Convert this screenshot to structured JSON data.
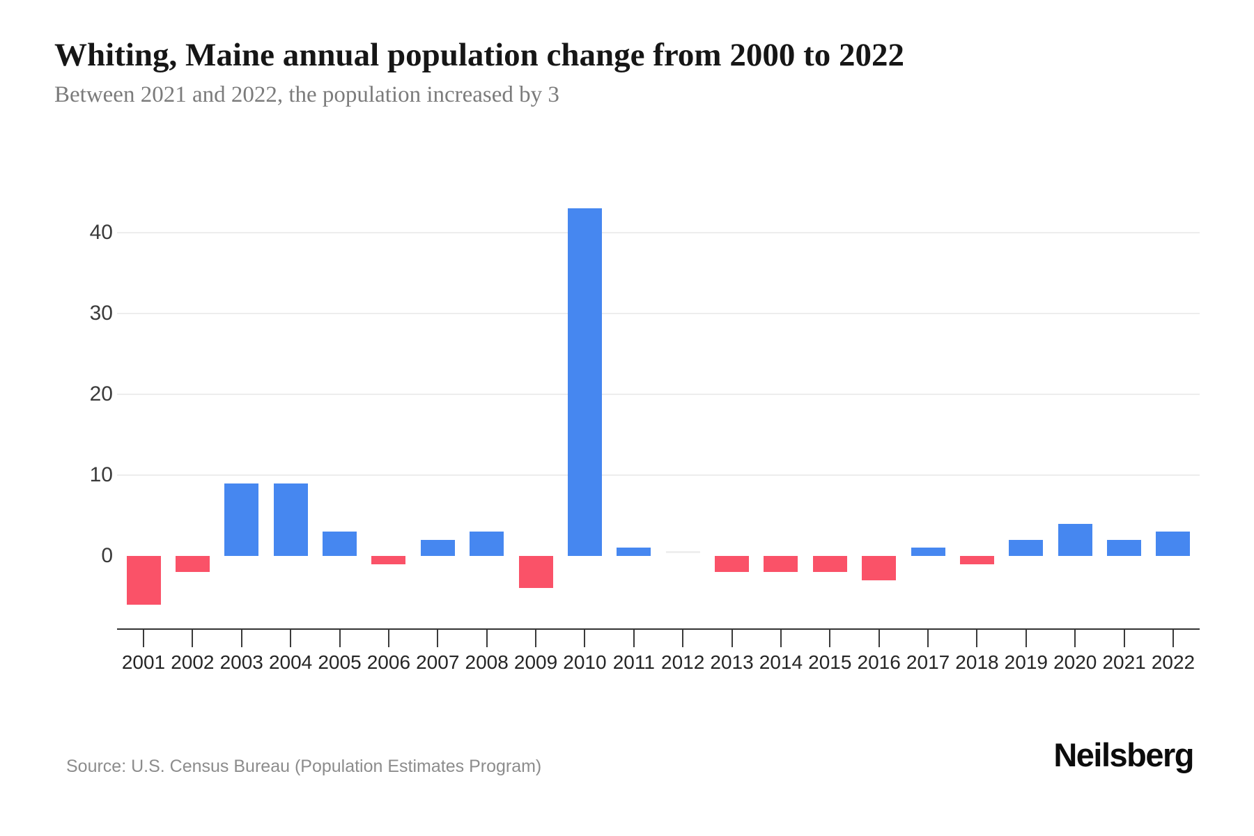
{
  "header": {
    "title": "Whiting, Maine annual population change from 2000 to 2022",
    "subtitle": "Between 2021 and 2022, the population increased by 3"
  },
  "footer": {
    "source": "Source: U.S. Census Bureau (Population Estimates Program)",
    "brand": "Neilsberg"
  },
  "chart_data": {
    "type": "bar",
    "title": "Whiting, Maine annual population change from 2000 to 2022",
    "subtitle": "Between 2021 and 2022, the population increased by 3",
    "categories": [
      "2001",
      "2002",
      "2003",
      "2004",
      "2005",
      "2006",
      "2007",
      "2008",
      "2009",
      "2010",
      "2011",
      "2012",
      "2013",
      "2014",
      "2015",
      "2016",
      "2017",
      "2018",
      "2019",
      "2020",
      "2021",
      "2022"
    ],
    "values": [
      -6,
      -2,
      9,
      9,
      3,
      -1,
      2,
      3,
      -4,
      43,
      1,
      0,
      -2,
      -2,
      -2,
      -3,
      1,
      -1,
      2,
      4,
      2,
      3
    ],
    "xlabel": "",
    "ylabel": "",
    "yticks": [
      0,
      10,
      20,
      30,
      40
    ],
    "ylim": [
      -9,
      45
    ],
    "grid": "horizontal-above-zero-only",
    "legend": "none",
    "colors": {
      "positive": "#4687F0",
      "negative": "#FA5268",
      "zero": "#EFEFEF"
    }
  }
}
